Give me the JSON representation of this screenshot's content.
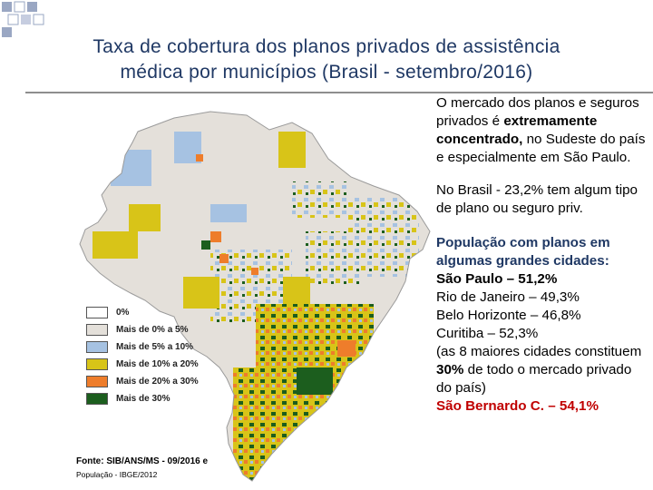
{
  "title": {
    "line1": "Taxa de cobertura dos planos privados de assistência",
    "line2": "médica por municípios (Brasil - setembro/2016)"
  },
  "legend": [
    {
      "label": "0%",
      "color": "#ffffff"
    },
    {
      "label": "Mais de 0% a 5%",
      "color": "#e4e0da"
    },
    {
      "label": "Mais de 5% a 10%",
      "color": "#a6c2e2"
    },
    {
      "label": "Mais de 10% a 20%",
      "color": "#d8c418"
    },
    {
      "label": "Mais de 20% a 30%",
      "color": "#ee7d2b"
    },
    {
      "label": "Mais de 30%",
      "color": "#1c5e1e"
    }
  ],
  "source": {
    "line1": "Fonte: SIB/ANS/MS - 09/2016 e",
    "line2": "População - IBGE/2012"
  },
  "text": {
    "p1_start": "O mercado dos planos e seguros privados é",
    "p1_bold": "extremamente concentrado,",
    "p1_end": "no Sudeste do país e especialmente em São Paulo.",
    "p2": "No Brasil - 23,2% tem algum tipo de plano ou seguro priv.",
    "p3_heading": "População com planos em algumas grandes cidades:",
    "sao_paulo": "São Paulo – 51,2%",
    "rio": "Rio de Janeiro – 49,3%",
    "bh": "Belo Horizonte – 46,8%",
    "curitiba": "Curitiba – 52,3%",
    "note_start": "(as 8 maiores cidades constituem",
    "note_bold": "30%",
    "note_end": "de todo o mercado privado do país)",
    "sbc": "São Bernardo C. – 54,1%"
  },
  "colors": {
    "title": "#1f3864",
    "highlight": "#c00000",
    "corner": "#9aa7c3"
  }
}
